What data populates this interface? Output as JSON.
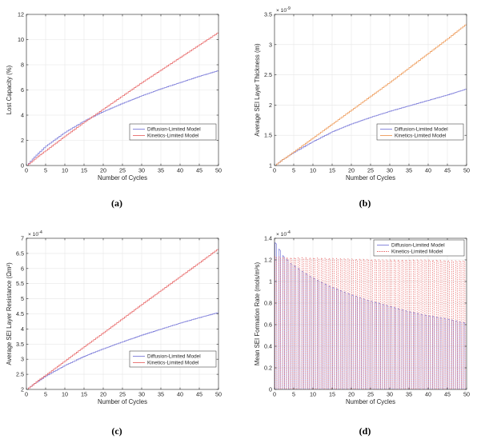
{
  "chart_data": [
    {
      "id": "a",
      "type": "line",
      "caption": "(a)",
      "title": "",
      "xlabel": "Number of Cycles",
      "ylabel": "Lost Capacity (%)",
      "xlim": [
        0,
        50
      ],
      "ylim": [
        0,
        12
      ],
      "xticks": [
        0,
        5,
        10,
        15,
        20,
        25,
        30,
        35,
        40,
        45,
        50
      ],
      "yticks": [
        0,
        2,
        4,
        6,
        8,
        10,
        12
      ],
      "exponent": "",
      "grid": true,
      "legend_position": "middle-right",
      "series": [
        {
          "name": "Diffusion-Limited Model",
          "color": "#7b7bd9",
          "style": "stair",
          "dash": "solid",
          "x": [
            0,
            1,
            2,
            3,
            5,
            10,
            15,
            20,
            25,
            30,
            35,
            40,
            45,
            50
          ],
          "y": [
            0,
            0.35,
            0.68,
            0.98,
            1.55,
            2.65,
            3.55,
            4.3,
            4.95,
            5.55,
            6.1,
            6.6,
            7.1,
            7.55
          ]
        },
        {
          "name": "Kinetics-Limited Model",
          "color": "#e86a6a",
          "style": "stair",
          "dash": "solid",
          "x": [
            0,
            1,
            2,
            3,
            5,
            10,
            15,
            20,
            25,
            30,
            35,
            40,
            45,
            50
          ],
          "y": [
            0,
            0.25,
            0.5,
            0.75,
            1.2,
            2.35,
            3.45,
            4.5,
            5.55,
            6.6,
            7.6,
            8.6,
            9.6,
            10.6
          ]
        }
      ]
    },
    {
      "id": "b",
      "type": "line",
      "caption": "(b)",
      "title": "",
      "xlabel": "Number of Cycles",
      "ylabel": "Average SEI Layer Thickness (m)",
      "xlim": [
        0,
        50
      ],
      "ylim": [
        1,
        3.5
      ],
      "xticks": [
        0,
        5,
        10,
        15,
        20,
        25,
        30,
        35,
        40,
        45,
        50
      ],
      "yticks": [
        1,
        1.5,
        2,
        2.5,
        3,
        3.5
      ],
      "exponent": "× 10^-9",
      "grid": true,
      "legend_position": "bottom-right",
      "series": [
        {
          "name": "Diffusion-Limited Model",
          "color": "#7b7bd9",
          "style": "stair",
          "dash": "solid",
          "x": [
            0,
            1,
            2,
            3,
            5,
            10,
            15,
            20,
            25,
            30,
            35,
            40,
            45,
            50
          ],
          "y": [
            1.0,
            1.05,
            1.1,
            1.14,
            1.22,
            1.4,
            1.56,
            1.69,
            1.8,
            1.9,
            1.99,
            2.08,
            2.17,
            2.27
          ]
        },
        {
          "name": "Kinetics-Limited Model",
          "color": "#ee9a58",
          "style": "stair",
          "dash": "solid",
          "x": [
            0,
            1,
            2,
            3,
            5,
            10,
            15,
            20,
            25,
            30,
            35,
            40,
            45,
            50
          ],
          "y": [
            1.0,
            1.05,
            1.1,
            1.14,
            1.23,
            1.46,
            1.69,
            1.92,
            2.15,
            2.38,
            2.62,
            2.86,
            3.1,
            3.35
          ]
        }
      ]
    },
    {
      "id": "c",
      "type": "line",
      "caption": "(c)",
      "title": "",
      "xlabel": "Number of Cycles",
      "ylabel": "Average SEI Layer Resistance (Ωm²)",
      "xlim": [
        0,
        50
      ],
      "ylim": [
        2,
        7
      ],
      "xticks": [
        0,
        5,
        10,
        15,
        20,
        25,
        30,
        35,
        40,
        45,
        50
      ],
      "yticks": [
        2,
        2.5,
        3,
        3.5,
        4,
        4.5,
        5,
        5.5,
        6,
        6.5,
        7
      ],
      "exponent": "× 10^-4",
      "grid": true,
      "legend_position": "bottom-right",
      "series": [
        {
          "name": "Diffusion-Limited Model",
          "color": "#7b7bd9",
          "style": "stair",
          "dash": "solid",
          "x": [
            0,
            1,
            2,
            3,
            5,
            10,
            15,
            20,
            25,
            30,
            35,
            40,
            45,
            50
          ],
          "y": [
            2.0,
            2.1,
            2.2,
            2.28,
            2.45,
            2.8,
            3.1,
            3.35,
            3.58,
            3.8,
            4.0,
            4.2,
            4.38,
            4.55
          ]
        },
        {
          "name": "Kinetics-Limited Model",
          "color": "#e86a6a",
          "style": "stair",
          "dash": "solid",
          "x": [
            0,
            1,
            2,
            3,
            5,
            10,
            15,
            20,
            25,
            30,
            35,
            40,
            45,
            50
          ],
          "y": [
            2.0,
            2.1,
            2.2,
            2.3,
            2.48,
            2.95,
            3.42,
            3.88,
            4.35,
            4.82,
            5.28,
            5.74,
            6.2,
            6.67
          ]
        }
      ]
    },
    {
      "id": "d",
      "type": "line",
      "caption": "(d)",
      "title": "",
      "xlabel": "Number of Cycles",
      "ylabel": "Mean SEI Formation Rate (mols/m³s)",
      "xlim": [
        0,
        50
      ],
      "ylim": [
        0,
        1.4
      ],
      "xticks": [
        0,
        5,
        10,
        15,
        20,
        25,
        30,
        35,
        40,
        45,
        50
      ],
      "yticks": [
        0,
        0.2,
        0.4,
        0.6,
        0.8,
        1,
        1.2,
        1.4
      ],
      "exponent": "× 10^-4",
      "grid": true,
      "legend_position": "top-right",
      "series": [
        {
          "name": "Diffusion-Limited Model",
          "color": "#7b7bd9",
          "style": "pulse",
          "dash": "solid",
          "x": [
            1,
            2,
            3,
            5,
            10,
            15,
            20,
            25,
            30,
            35,
            40,
            45,
            50
          ],
          "y": [
            1.36,
            1.3,
            1.24,
            1.17,
            1.05,
            0.96,
            0.89,
            0.83,
            0.78,
            0.73,
            0.69,
            0.66,
            0.62
          ]
        },
        {
          "name": "Kinetics-Limited Model",
          "color": "#e86a6a",
          "style": "pulse",
          "dash": "dashed",
          "x": [
            1,
            5,
            10,
            20,
            30,
            40,
            50
          ],
          "y": [
            1.23,
            1.22,
            1.22,
            1.21,
            1.2,
            1.2,
            1.19
          ]
        }
      ]
    }
  ]
}
